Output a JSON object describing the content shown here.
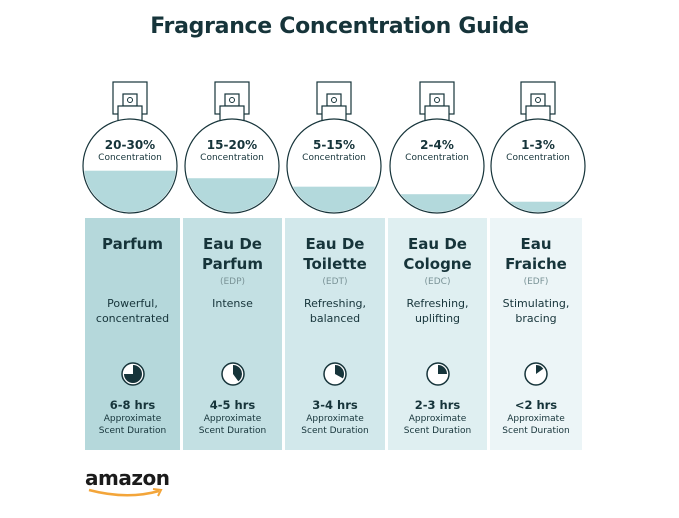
{
  "title": "Fragrance Concentration Guide",
  "colors": {
    "text": "#16343a",
    "liquid": "#b3d9dc",
    "column_gradient": [
      "#b5d8db",
      "#c3e0e3",
      "#d2e8eb",
      "#dfeff1",
      "#ecf5f7"
    ]
  },
  "items": [
    {
      "concentration": "20-30%",
      "concentration_label": "Concentration",
      "fill_level": 0.45,
      "name_line1": "Parfum",
      "name_line2": "",
      "abbr": "",
      "desc_line1": "Powerful,",
      "desc_line2": "concentrated",
      "clock_fraction": 0.75,
      "duration": "6-8 hrs",
      "approx_line1": "Approximate",
      "approx_line2": "Scent Duration"
    },
    {
      "concentration": "15-20%",
      "concentration_label": "Concentration",
      "fill_level": 0.37,
      "name_line1": "Eau De",
      "name_line2": "Parfum",
      "abbr": "(EDP)",
      "desc_line1": "Intense",
      "desc_line2": "",
      "clock_fraction": 0.4,
      "duration": "4-5 hrs",
      "approx_line1": "Approximate",
      "approx_line2": "Scent Duration"
    },
    {
      "concentration": "5-15%",
      "concentration_label": "Concentration",
      "fill_level": 0.28,
      "name_line1": "Eau De",
      "name_line2": "Toilette",
      "abbr": "(EDT)",
      "desc_line1": "Refreshing,",
      "desc_line2": "balanced",
      "clock_fraction": 0.33,
      "duration": "3-4 hrs",
      "approx_line1": "Approximate",
      "approx_line2": "Scent Duration"
    },
    {
      "concentration": "2-4%",
      "concentration_label": "Concentration",
      "fill_level": 0.2,
      "name_line1": "Eau De",
      "name_line2": "Cologne",
      "abbr": "(EDC)",
      "desc_line1": "Refreshing,",
      "desc_line2": "uplifting",
      "clock_fraction": 0.25,
      "duration": "2-3 hrs",
      "approx_line1": "Approximate",
      "approx_line2": "Scent Duration"
    },
    {
      "concentration": "1-3%",
      "concentration_label": "Concentration",
      "fill_level": 0.12,
      "name_line1": "Eau",
      "name_line2": "Fraiche",
      "abbr": "(EDF)",
      "desc_line1": "Stimulating,",
      "desc_line2": "bracing",
      "clock_fraction": 0.15,
      "duration": "<2 hrs",
      "approx_line1": "Approximate",
      "approx_line2": "Scent Duration"
    }
  ],
  "brand": "amazon"
}
